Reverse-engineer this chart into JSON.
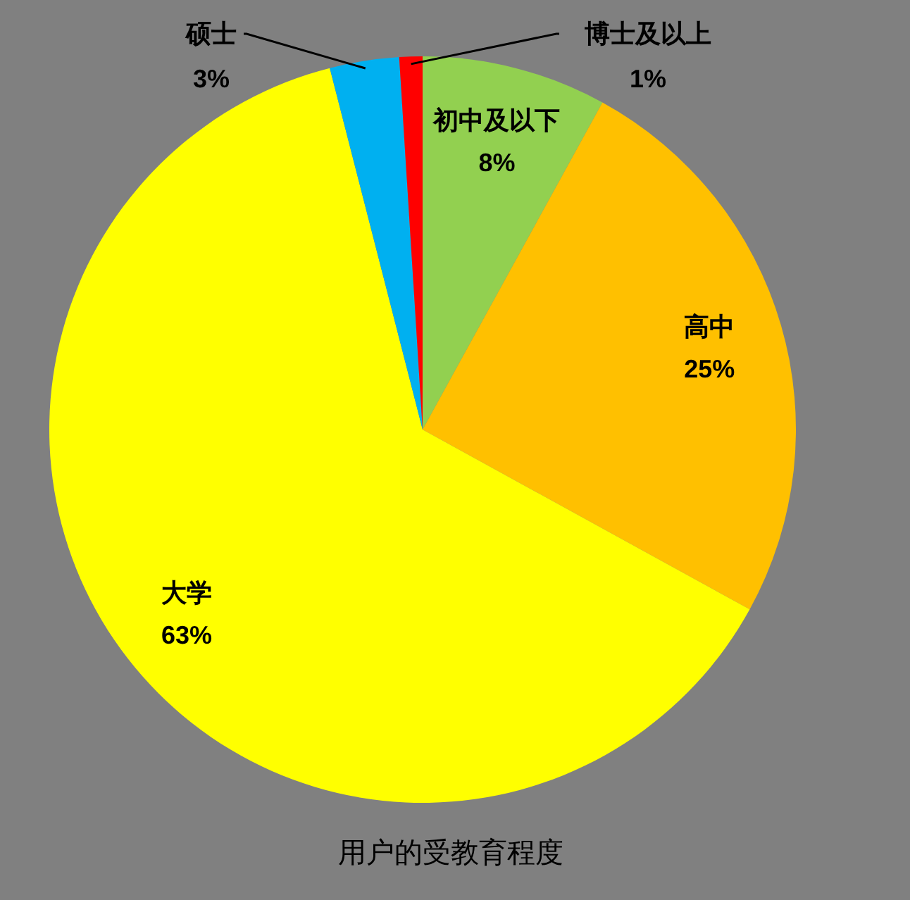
{
  "chart_data": {
    "type": "pie",
    "title": "用户的受教育程度",
    "categories": [
      "初中及以下",
      "高中",
      "大学",
      "硕士",
      "博士及以上"
    ],
    "values": [
      8,
      25,
      63,
      3,
      1
    ],
    "colors": [
      "#92d050",
      "#ffc000",
      "#ffff00",
      "#00b0f0",
      "#ff0000"
    ],
    "value_labels": [
      "8%",
      "25%",
      "63%",
      "3%",
      "1%"
    ]
  }
}
